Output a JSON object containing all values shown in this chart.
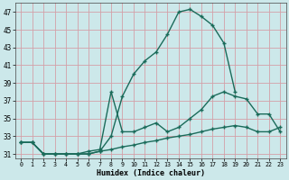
{
  "xlabel": "Humidex (Indice chaleur)",
  "background_color": "#cce8ea",
  "grid_color": "#d4a0a8",
  "line_color": "#1a6b5a",
  "xlim": [
    -0.5,
    23.5
  ],
  "ylim": [
    30.5,
    48.0
  ],
  "xticks": [
    0,
    1,
    2,
    3,
    4,
    5,
    6,
    7,
    8,
    9,
    10,
    11,
    12,
    13,
    14,
    15,
    16,
    17,
    18,
    19,
    20,
    21,
    22,
    23
  ],
  "yticks": [
    31,
    33,
    35,
    37,
    39,
    41,
    43,
    45,
    47
  ],
  "line1_x": [
    0,
    1,
    2,
    3,
    4,
    5,
    6,
    7,
    8,
    9,
    10,
    11,
    12,
    13,
    14,
    15,
    16,
    17,
    18,
    19
  ],
  "line1_y": [
    32.3,
    32.3,
    31.0,
    31.0,
    31.0,
    31.0,
    31.0,
    31.3,
    33.0,
    37.5,
    40.0,
    41.5,
    42.5,
    44.5,
    47.0,
    47.3,
    46.5,
    45.5,
    43.5,
    38.0
  ],
  "line2_x": [
    0,
    1,
    2,
    3,
    4,
    5,
    6,
    7,
    8,
    9,
    10,
    11,
    12,
    13,
    14,
    15,
    16,
    17,
    18,
    19,
    20,
    21,
    22,
    23
  ],
  "line2_y": [
    32.3,
    32.3,
    31.0,
    31.0,
    31.0,
    31.0,
    31.3,
    31.5,
    38.0,
    33.5,
    33.5,
    34.0,
    34.5,
    33.5,
    34.0,
    35.0,
    36.0,
    37.5,
    38.0,
    37.5,
    37.2,
    35.5,
    35.5,
    33.5
  ],
  "line3_x": [
    0,
    1,
    2,
    3,
    4,
    5,
    6,
    7,
    8,
    9,
    10,
    11,
    12,
    13,
    14,
    15,
    16,
    17,
    18,
    19,
    20,
    21,
    22,
    23
  ],
  "line3_y": [
    32.3,
    32.3,
    31.0,
    31.0,
    31.0,
    31.0,
    31.0,
    31.3,
    31.5,
    31.8,
    32.0,
    32.3,
    32.5,
    32.8,
    33.0,
    33.2,
    33.5,
    33.8,
    34.0,
    34.2,
    34.0,
    33.5,
    33.5,
    34.0
  ]
}
